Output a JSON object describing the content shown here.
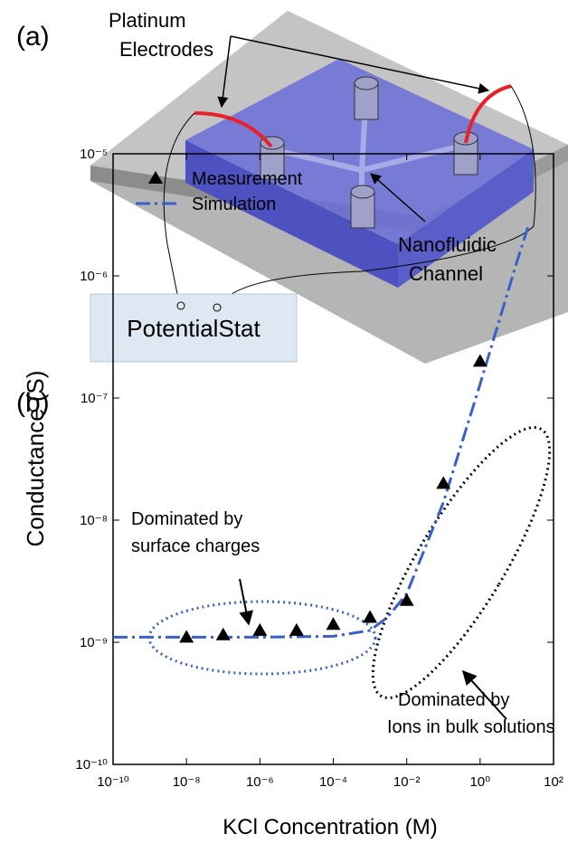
{
  "panel_a": {
    "label": "(a)",
    "electrodes": [
      "Platinum",
      "Electrodes"
    ],
    "channel": [
      "Nanofluidic",
      "Channel"
    ],
    "instrument": "PotentialStat"
  },
  "chart_data": {
    "type": "scatter",
    "panel_label": "(b)",
    "xlabel": "KCl Concentration (M)",
    "ylabel": "Conductance (S)",
    "log_x": true,
    "log_y": true,
    "legend_loc": "upper left",
    "xlim": [
      1e-10,
      100
    ],
    "ylim": [
      1e-10,
      1e-05
    ],
    "xticks": [
      {
        "value": 1e-10,
        "label": "10⁻¹⁰"
      },
      {
        "value": 1e-08,
        "label": "10⁻⁸"
      },
      {
        "value": 1e-06,
        "label": "10⁻⁶"
      },
      {
        "value": 0.0001,
        "label": "10⁻⁴"
      },
      {
        "value": 0.01,
        "label": "10⁻²"
      },
      {
        "value": 1,
        "label": "10⁰"
      },
      {
        "value": 100,
        "label": "10²"
      }
    ],
    "yticks": [
      {
        "value": 1e-10,
        "label": "10⁻¹⁰"
      },
      {
        "value": 1e-09,
        "label": "10⁻⁹"
      },
      {
        "value": 1e-08,
        "label": "10⁻⁸"
      },
      {
        "value": 1e-07,
        "label": "10⁻⁷"
      },
      {
        "value": 1e-06,
        "label": "10⁻⁶"
      },
      {
        "value": 1e-05,
        "label": "10⁻⁵"
      }
    ],
    "series": [
      {
        "name": "Measurement",
        "color": "#000000",
        "marker": "triangle",
        "x": [
          1e-08,
          1e-07,
          1e-06,
          1e-05,
          0.0001,
          0.001,
          0.01,
          0.1,
          1
        ],
        "values": [
          1.1e-09,
          1.15e-09,
          1.25e-09,
          1.25e-09,
          1.4e-09,
          1.6e-09,
          2.2e-09,
          2e-08,
          2e-07
        ]
      },
      {
        "name": "Simulation",
        "color": "#3a5fc8",
        "marker": "dashdot",
        "x": [
          1e-10,
          1e-08,
          1e-06,
          0.0001,
          0.001,
          0.003,
          0.01,
          0.1,
          1,
          10,
          20
        ],
        "values": [
          1.1e-09,
          1.1e-09,
          1.1e-09,
          1.12e-09,
          1.25e-09,
          1.6e-09,
          2.5e-09,
          1.4e-08,
          1.3e-07,
          1.3e-06,
          2.5e-06
        ]
      }
    ],
    "annotations": [
      [
        "Dominated by",
        "surface charges"
      ],
      [
        "Dominated by",
        "Ions in bulk solutions"
      ]
    ]
  }
}
